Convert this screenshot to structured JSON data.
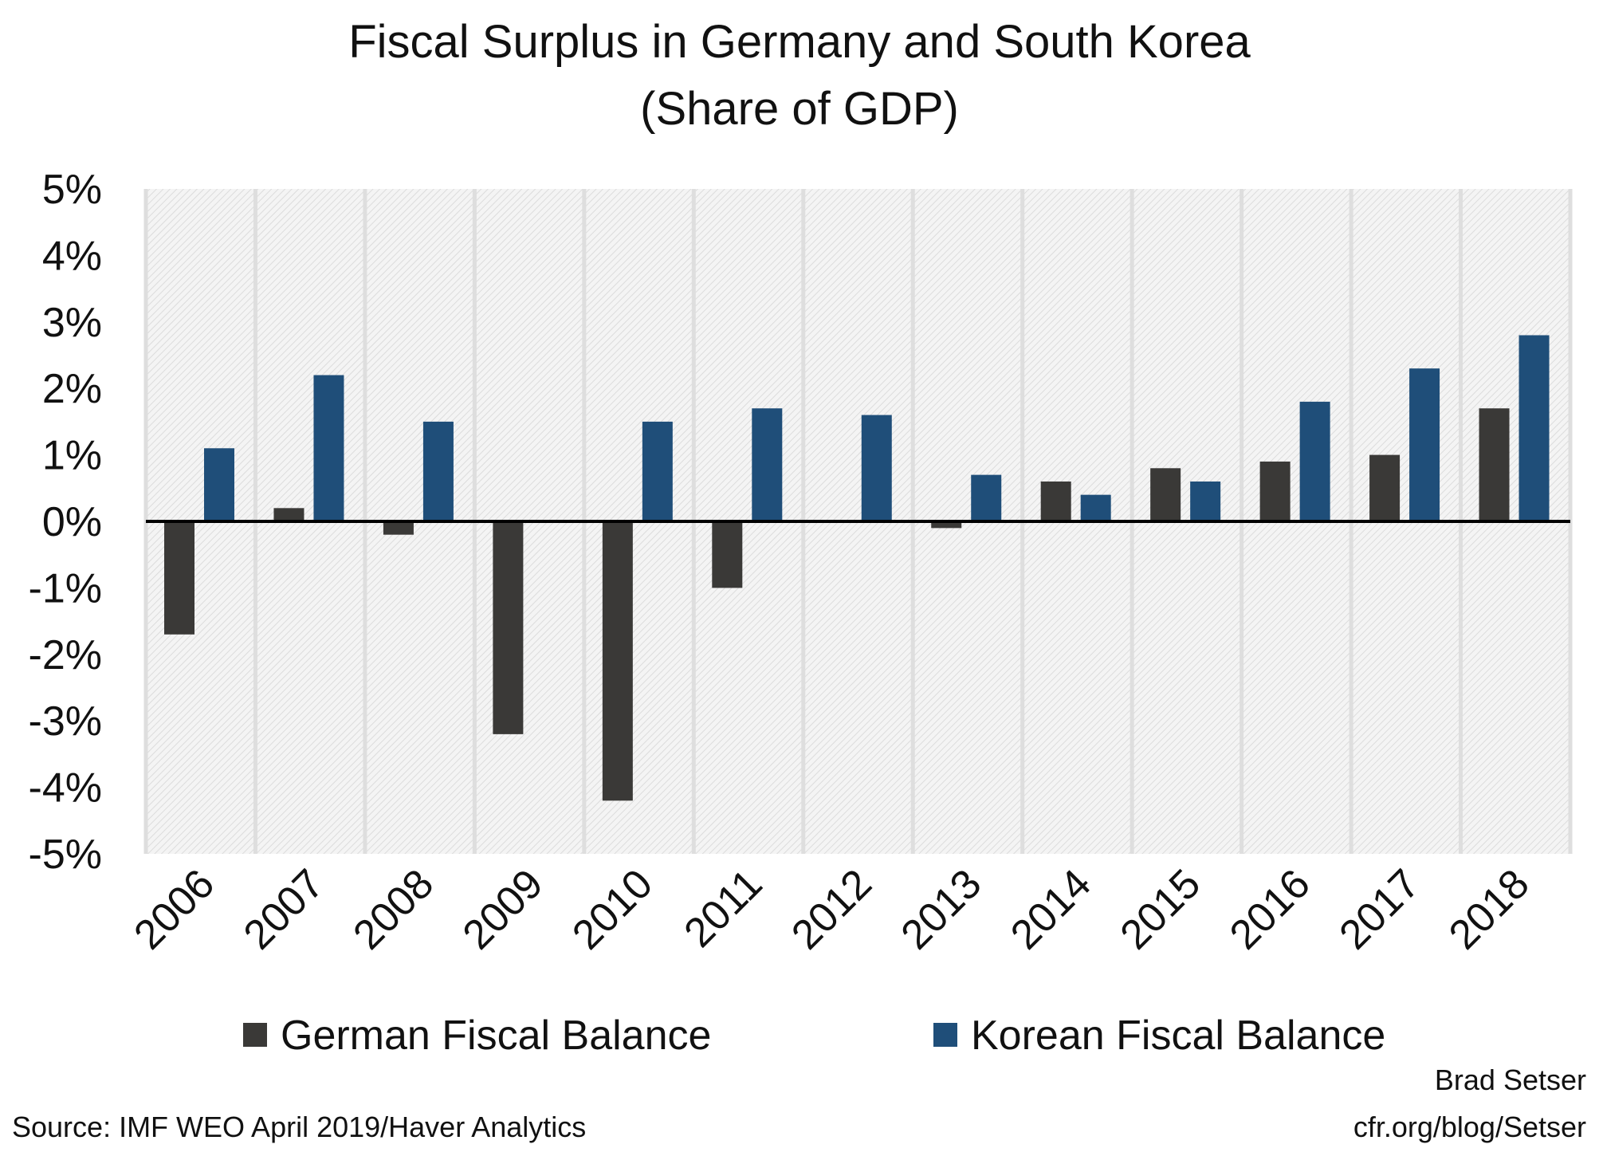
{
  "chart_data": {
    "type": "bar",
    "title": "Fiscal Surplus in Germany and South Korea",
    "subtitle": "(Share of GDP)",
    "xlabel": "",
    "ylabel": "",
    "ylim": [
      -5,
      5
    ],
    "y_ticks": [
      "5%",
      "4%",
      "3%",
      "2%",
      "1%",
      "0%",
      "-1%",
      "-2%",
      "-3%",
      "-4%",
      "-5%"
    ],
    "y_tick_values": [
      5,
      4,
      3,
      2,
      1,
      0,
      -1,
      -2,
      -3,
      -4,
      -5
    ],
    "grid": "vertical category separators",
    "legend_position": "bottom",
    "categories": [
      "2006",
      "2007",
      "2008",
      "2009",
      "2010",
      "2011",
      "2012",
      "2013",
      "2014",
      "2015",
      "2016",
      "2017",
      "2018"
    ],
    "series": [
      {
        "name": "German Fiscal Balance",
        "color": "#3a3937",
        "values": [
          -1.7,
          0.2,
          -0.2,
          -3.2,
          -4.2,
          -1.0,
          0.0,
          -0.1,
          0.6,
          0.8,
          0.9,
          1.0,
          1.7
        ]
      },
      {
        "name": "Korean Fiscal Balance",
        "color": "#1f4e79",
        "values": [
          1.1,
          2.2,
          1.5,
          0.0,
          1.5,
          1.7,
          1.6,
          0.7,
          0.4,
          0.6,
          1.8,
          2.3,
          2.8
        ]
      }
    ]
  },
  "footer": {
    "source": "Source: IMF WEO April 2019/Haver Analytics",
    "author": "Brad Setser",
    "site": "cfr.org/blog/Setser"
  }
}
